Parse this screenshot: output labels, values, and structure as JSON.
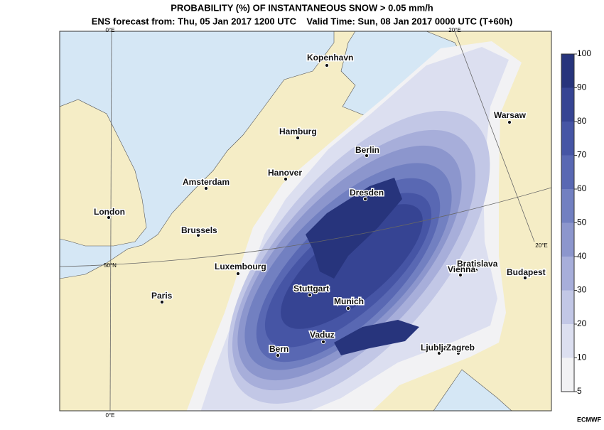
{
  "title": "PROBABILITY (%) OF INSTANTANEOUS SNOW > 0.05 mm/h",
  "subtitle": "ENS forecast from: Thu, 05 Jan 2017 1200 UTC    Valid Time: Sun, 08 Jan 2017 0000 UTC (T+60h)",
  "colorbar": {
    "ticks": [
      5,
      10,
      20,
      30,
      40,
      50,
      60,
      70,
      80,
      90,
      100
    ],
    "colors": [
      "#f2f2f4",
      "#dcdff0",
      "#c2c7e6",
      "#a7aeda",
      "#8c96cd",
      "#7280c1",
      "#5968b3",
      "#4655a5",
      "#364493",
      "#27347c"
    ]
  },
  "cities": [
    "Kopenhavn",
    "Hamburg",
    "Berlin",
    "Warsaw",
    "Amsterdam",
    "Hanover",
    "Dresden",
    "London",
    "Brussels",
    "Luxembourg",
    "Bratislava",
    "Vienna",
    "Budapest",
    "Paris",
    "Stuttgart",
    "Munich",
    "Vaduz",
    "Bern",
    "Ljubljana",
    "Zagreb"
  ],
  "grid_labels": [
    "0°E",
    "0°E",
    "20°E",
    "20°E",
    "50°N"
  ],
  "credit": "ECMWF"
}
